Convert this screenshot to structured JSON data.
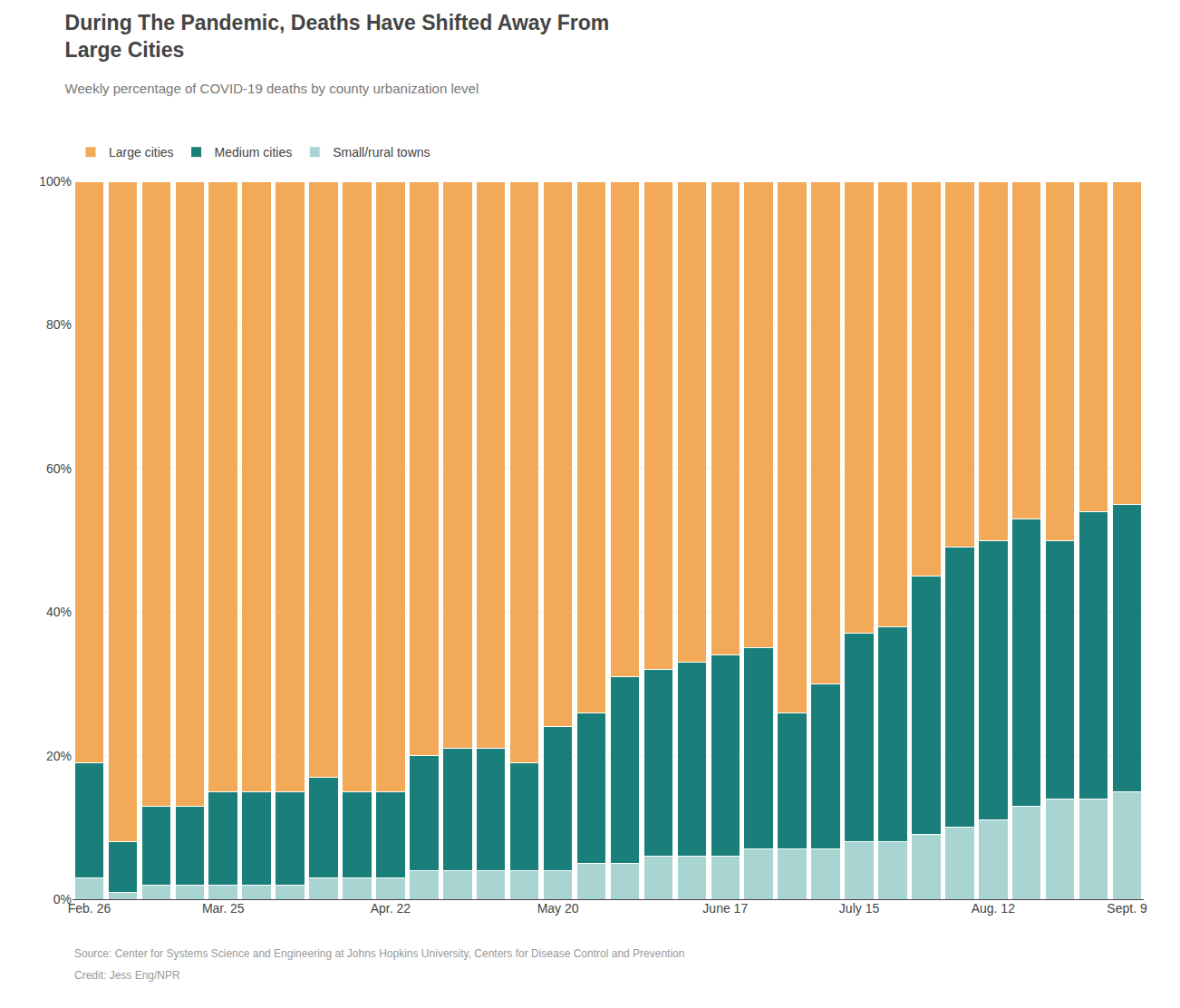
{
  "chart_data": {
    "type": "bar",
    "stacked": true,
    "title": "During The Pandemic, Deaths Have Shifted Away From\nLarge Cities",
    "subtitle": "Weekly percentage of COVID-19 deaths by county urbanization level",
    "annotations": [
      "Source: Center for Systems Science and Engineering at Johns Hopkins University, Centers for Disease Control and Prevention",
      "Credit: Jess Eng/NPR"
    ],
    "categories": [
      "Feb. 26",
      null,
      null,
      null,
      "Mar. 25",
      null,
      null,
      null,
      null,
      "Apr. 22",
      null,
      null,
      null,
      null,
      "May 20",
      null,
      null,
      null,
      null,
      "June 17",
      null,
      null,
      null,
      "July 15",
      null,
      null,
      null,
      "Aug. 12",
      null,
      null,
      null,
      "Sept. 9"
    ],
    "series": [
      {
        "name": "Small/rural towns",
        "color": "#A8D5D1",
        "values": [
          3,
          1,
          2,
          2,
          2,
          2,
          2,
          3,
          3,
          3,
          4,
          4,
          4,
          4,
          4,
          5,
          5,
          6,
          6,
          6,
          7,
          7,
          7,
          8,
          8,
          9,
          10,
          11,
          13,
          14,
          14,
          15
        ]
      },
      {
        "name": "Medium cities",
        "color": "#1A7F7A",
        "values": [
          16,
          7,
          11,
          11,
          13,
          13,
          13,
          14,
          12,
          12,
          16,
          17,
          17,
          15,
          20,
          21,
          26,
          26,
          27,
          28,
          28,
          19,
          23,
          29,
          30,
          36,
          39,
          39,
          40,
          36,
          40,
          40
        ]
      },
      {
        "name": "Large cities",
        "color": "#F2AA58",
        "values": [
          81,
          92,
          87,
          87,
          85,
          85,
          85,
          83,
          85,
          85,
          80,
          79,
          79,
          81,
          76,
          74,
          69,
          68,
          67,
          66,
          65,
          74,
          70,
          63,
          62,
          55,
          51,
          50,
          47,
          50,
          46,
          45
        ]
      }
    ],
    "ylim": [
      0,
      100
    ],
    "yticks": [
      {
        "value": 0,
        "label": "0%"
      },
      {
        "value": 20,
        "label": "20%"
      },
      {
        "value": 40,
        "label": "40%"
      },
      {
        "value": 60,
        "label": "60%"
      },
      {
        "value": 80,
        "label": "80%"
      },
      {
        "value": 100,
        "label": "100%"
      }
    ],
    "grid": true,
    "legend": "top left"
  }
}
